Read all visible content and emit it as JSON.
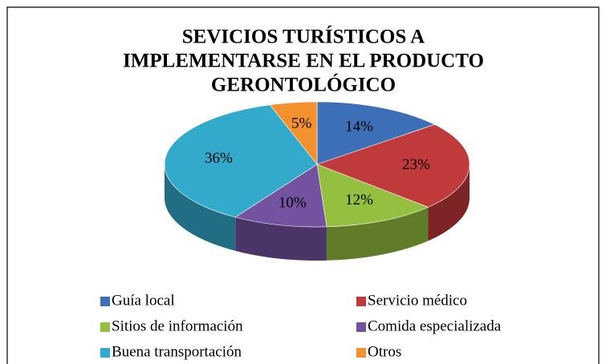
{
  "chart_data": {
    "type": "pie3d",
    "title": [
      "SEVICIOS TURÍSTICOS A",
      "IMPLEMENTARSE EN EL PRODUCTO",
      "GERONTOLÓGICO"
    ],
    "categories": [
      "Guía local",
      "Servicio médico",
      "Sitios de información",
      "Comida especializada",
      "Buena transportación",
      "Otros"
    ],
    "values": [
      14,
      23,
      12,
      10,
      36,
      5
    ],
    "value_labels": [
      "14%",
      "23%",
      "12%",
      "10%",
      "36%",
      "5%"
    ],
    "colors": [
      "#3d6fb6",
      "#c0393b",
      "#95bf3f",
      "#7352a0",
      "#33a9cb",
      "#f2912e"
    ],
    "legend": "bottom"
  }
}
